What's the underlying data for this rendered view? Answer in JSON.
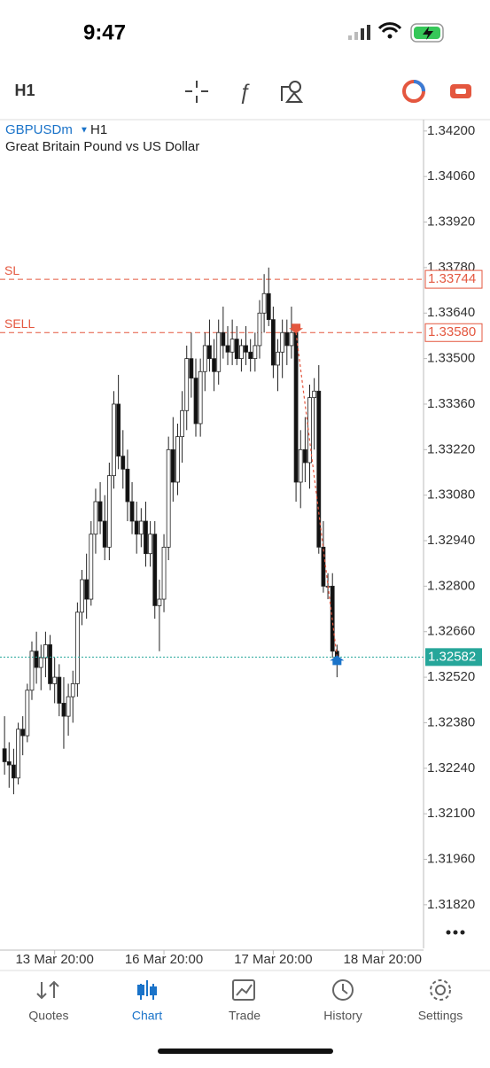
{
  "status_bar": {
    "time": "9:47"
  },
  "toolbar": {
    "timeframe": "H1"
  },
  "chart_data": {
    "type": "candlestick",
    "symbol": "GBPUSDm",
    "timeframe": "H1",
    "description": "Great Britain Pound vs US Dollar",
    "open": [
      1.323,
      1.3226,
      1.3225,
      1.3221,
      1.3236,
      1.3234,
      1.3248,
      1.326,
      1.3255,
      1.3258,
      1.3262,
      1.325,
      1.3252,
      1.3244,
      1.324,
      1.3246,
      1.325,
      1.3272,
      1.3282,
      1.3276,
      1.3296,
      1.3306,
      1.33,
      1.3292,
      1.3314,
      1.3336,
      1.332,
      1.3316,
      1.3306,
      1.33,
      1.3296,
      1.33,
      1.329,
      1.3296,
      1.3274,
      1.3276,
      1.3292,
      1.3322,
      1.3312,
      1.3326,
      1.3334,
      1.335,
      1.3344,
      1.333,
      1.3346,
      1.3354,
      1.335,
      1.3346,
      1.3358,
      1.3354,
      1.3352,
      1.3356,
      1.335,
      1.3354,
      1.3352,
      1.335,
      1.3354,
      1.3364,
      1.337,
      1.3362,
      1.3348,
      1.3352,
      1.3358,
      1.3354,
      1.3358,
      1.3312,
      1.3322,
      1.3318,
      1.3338,
      1.334,
      1.3292,
      1.328,
      1.328,
      1.326
    ],
    "high": [
      1.324,
      1.3232,
      1.323,
      1.3238,
      1.324,
      1.325,
      1.3263,
      1.3266,
      1.3262,
      1.3266,
      1.3265,
      1.3258,
      1.3256,
      1.3252,
      1.325,
      1.3254,
      1.3275,
      1.3285,
      1.329,
      1.33,
      1.331,
      1.3312,
      1.3308,
      1.3318,
      1.334,
      1.3345,
      1.3328,
      1.3322,
      1.3312,
      1.3306,
      1.3304,
      1.3306,
      1.33,
      1.33,
      1.3282,
      1.3296,
      1.3326,
      1.3332,
      1.333,
      1.334,
      1.3354,
      1.3358,
      1.335,
      1.335,
      1.3358,
      1.3362,
      1.3356,
      1.3362,
      1.3366,
      1.336,
      1.3362,
      1.336,
      1.3356,
      1.336,
      1.3356,
      1.3358,
      1.3368,
      1.3376,
      1.3378,
      1.3366,
      1.3356,
      1.3362,
      1.3362,
      1.3366,
      1.336,
      1.3328,
      1.3332,
      1.3342,
      1.3344,
      1.3348,
      1.33,
      1.3284,
      1.3284,
      1.3262
    ],
    "low": [
      1.3222,
      1.3218,
      1.3216,
      1.3219,
      1.3228,
      1.3232,
      1.3245,
      1.325,
      1.3248,
      1.3252,
      1.3248,
      1.3244,
      1.324,
      1.323,
      1.3234,
      1.3238,
      1.3246,
      1.3268,
      1.327,
      1.3274,
      1.329,
      1.3296,
      1.3288,
      1.3288,
      1.331,
      1.3316,
      1.331,
      1.33,
      1.3296,
      1.329,
      1.3292,
      1.3286,
      1.3286,
      1.327,
      1.326,
      1.3272,
      1.3288,
      1.3306,
      1.3308,
      1.3318,
      1.3328,
      1.3338,
      1.3326,
      1.3326,
      1.334,
      1.3346,
      1.334,
      1.3342,
      1.335,
      1.3348,
      1.3348,
      1.3348,
      1.3346,
      1.3348,
      1.3346,
      1.3346,
      1.335,
      1.3358,
      1.336,
      1.3344,
      1.334,
      1.3344,
      1.3348,
      1.335,
      1.3306,
      1.3304,
      1.3312,
      1.331,
      1.3322,
      1.329,
      1.3278,
      1.3276,
      1.3258,
      1.3252
    ],
    "close": [
      1.3226,
      1.3225,
      1.3221,
      1.3236,
      1.3234,
      1.3248,
      1.326,
      1.3255,
      1.3258,
      1.3262,
      1.325,
      1.3252,
      1.3244,
      1.324,
      1.3246,
      1.325,
      1.3272,
      1.3282,
      1.3276,
      1.3296,
      1.3306,
      1.33,
      1.3292,
      1.3314,
      1.3336,
      1.332,
      1.3316,
      1.3306,
      1.33,
      1.3296,
      1.33,
      1.329,
      1.3296,
      1.3274,
      1.3276,
      1.3292,
      1.3322,
      1.3312,
      1.3326,
      1.3334,
      1.335,
      1.3344,
      1.333,
      1.3346,
      1.3354,
      1.335,
      1.3346,
      1.3358,
      1.3354,
      1.3352,
      1.3356,
      1.335,
      1.3354,
      1.3352,
      1.335,
      1.3354,
      1.3364,
      1.337,
      1.3362,
      1.3348,
      1.3352,
      1.3358,
      1.3354,
      1.3358,
      1.3312,
      1.3322,
      1.3318,
      1.3338,
      1.334,
      1.3292,
      1.328,
      1.328,
      1.326,
      1.3258
    ],
    "xlim": [
      -1,
      92
    ],
    "xticks": [
      {
        "value": 11,
        "label": "13 Mar 20:00"
      },
      {
        "value": 35,
        "label": "16 Mar 20:00"
      },
      {
        "value": 59,
        "label": "17 Mar 20:00"
      },
      {
        "value": 83,
        "label": "18 Mar 20:00"
      }
    ],
    "ylim": [
      1.31686,
      1.34235
    ],
    "yticks": [
      {
        "value": 1.342,
        "label": "1.34200"
      },
      {
        "value": 1.3406,
        "label": "1.34060"
      },
      {
        "value": 1.3392,
        "label": "1.33920"
      },
      {
        "value": 1.3378,
        "label": "1.33780"
      },
      {
        "value": 1.3364,
        "label": "1.33640"
      },
      {
        "value": 1.335,
        "label": "1.33500"
      },
      {
        "value": 1.3336,
        "label": "1.33360"
      },
      {
        "value": 1.3322,
        "label": "1.33220"
      },
      {
        "value": 1.3308,
        "label": "1.33080"
      },
      {
        "value": 1.3294,
        "label": "1.32940"
      },
      {
        "value": 1.328,
        "label": "1.32800"
      },
      {
        "value": 1.3266,
        "label": "1.32660"
      },
      {
        "value": 1.3252,
        "label": "1.32520"
      },
      {
        "value": 1.3238,
        "label": "1.32380"
      },
      {
        "value": 1.3224,
        "label": "1.32240"
      },
      {
        "value": 1.321,
        "label": "1.32100"
      },
      {
        "value": 1.3196,
        "label": "1.31960"
      },
      {
        "value": 1.3182,
        "label": "1.31820"
      }
    ],
    "levels": [
      {
        "name": "SL",
        "value": 1.33744,
        "label": "1.33744",
        "color": "#e4573f"
      },
      {
        "name": "SELL",
        "value": 1.3358,
        "label": "1.33580",
        "color": "#e4573f"
      }
    ],
    "current_price": {
      "value": 1.32582,
      "label": "1.32582",
      "color": "#26a69a"
    },
    "trade": {
      "open_index": 64,
      "open_price": 1.3358,
      "close_index": 73,
      "close_price": 1.32582
    }
  },
  "tabs": [
    "Quotes",
    "Chart",
    "Trade",
    "History",
    "Settings"
  ]
}
